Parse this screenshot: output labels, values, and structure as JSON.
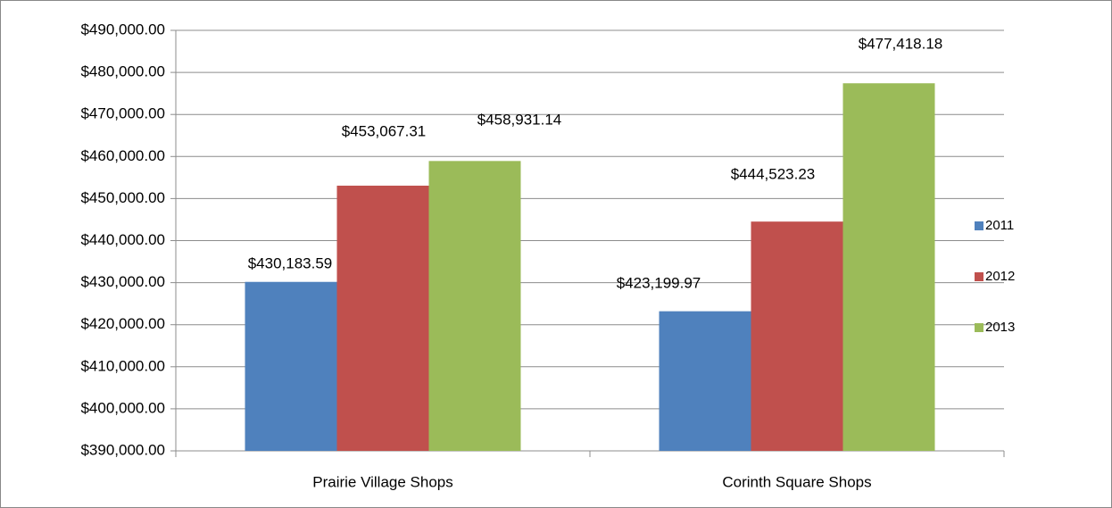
{
  "chart_data": {
    "type": "bar",
    "categories": [
      "Prairie Village Shops",
      "Corinth Square Shops"
    ],
    "series": [
      {
        "name": "2011",
        "color": "#4f81bd",
        "values": [
          430183.59,
          423199.97
        ],
        "value_labels": [
          "$430,183.59",
          "$423,199.97"
        ]
      },
      {
        "name": "2012",
        "color": "#c0504d",
        "values": [
          453067.31,
          444523.23
        ],
        "value_labels": [
          "$453,067.31",
          "$444,523.23"
        ]
      },
      {
        "name": "2013",
        "color": "#9bbb59",
        "values": [
          458931.14,
          477418.18
        ],
        "value_labels": [
          "$458,931.14",
          "$477,418.18"
        ]
      }
    ],
    "ylim": [
      390000,
      490000
    ],
    "yticks": [
      {
        "value": 390000,
        "label": "$390,000.00"
      },
      {
        "value": 400000,
        "label": "$400,000.00"
      },
      {
        "value": 410000,
        "label": "$410,000.00"
      },
      {
        "value": 420000,
        "label": "$420,000.00"
      },
      {
        "value": 430000,
        "label": "$430,000.00"
      },
      {
        "value": 440000,
        "label": "$440,000.00"
      },
      {
        "value": 450000,
        "label": "$450,000.00"
      },
      {
        "value": 460000,
        "label": "$460,000.00"
      },
      {
        "value": 470000,
        "label": "$470,000.00"
      },
      {
        "value": 480000,
        "label": "$480,000.00"
      },
      {
        "value": 490000,
        "label": "$490,000.00"
      }
    ],
    "grid": true,
    "legend": "right"
  }
}
